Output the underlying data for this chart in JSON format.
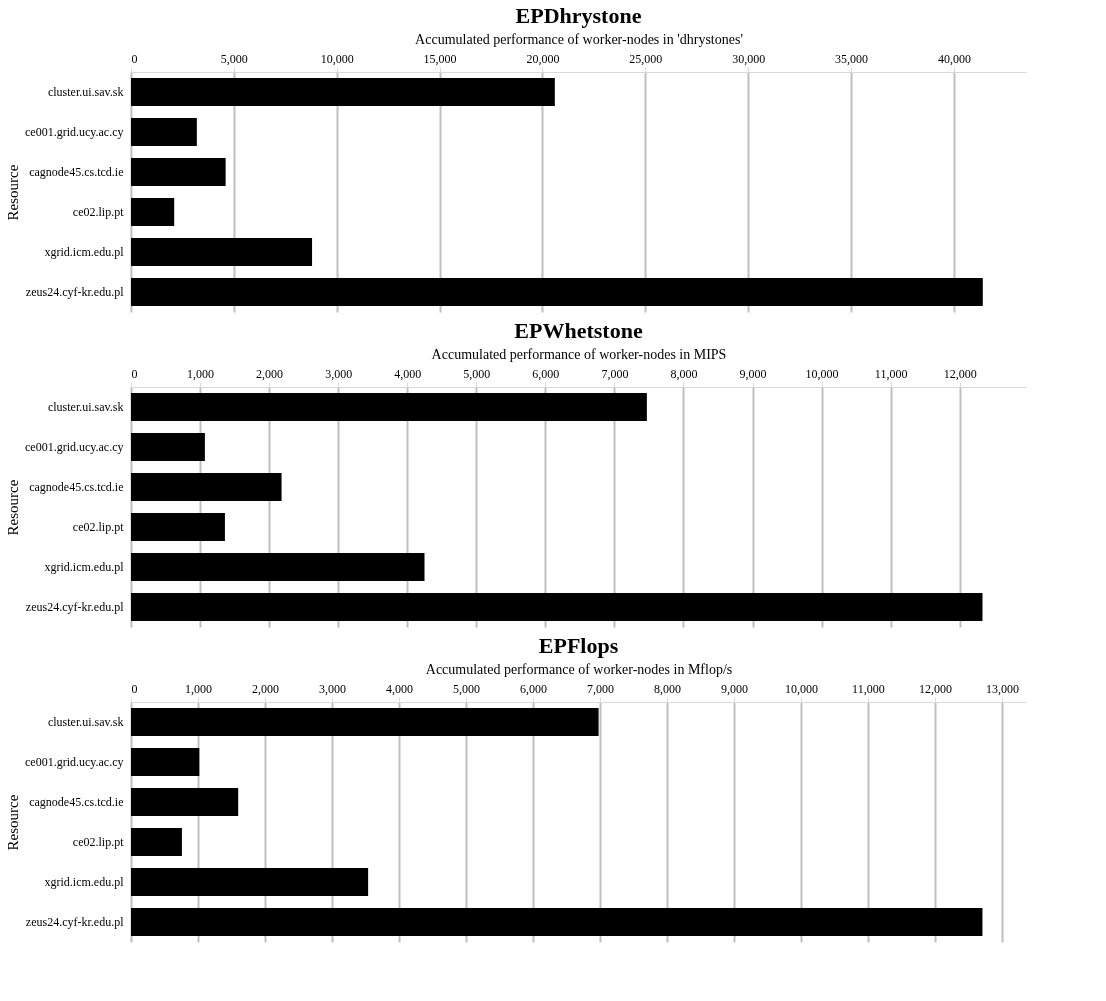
{
  "chart_data": [
    {
      "type": "bar",
      "orientation": "horizontal",
      "title": "EPDhrystone",
      "xlabel": "Accumulated performance of worker-nodes in 'dhrystones'",
      "ylabel": "Resource",
      "categories": [
        "cluster.ui.sav.sk",
        "ce001.grid.ucy.ac.cy",
        "cagnode45.cs.tcd.ie",
        "ce02.lip.pt",
        "xgrid.icm.edu.pl",
        "zeus24.cyf-kr.edu.pl"
      ],
      "values": [
        20600,
        3200,
        4600,
        2100,
        8800,
        41400
      ],
      "color": "#000000",
      "xlim": [
        0,
        43500
      ],
      "xticks": [
        0,
        {
          "value": 5000,
          "label": "5,000"
        },
        {
          "value": 10000,
          "label": "10,000"
        },
        {
          "value": 15000,
          "label": "15,000"
        },
        {
          "value": 20000,
          "label": "20,000"
        },
        {
          "value": 25000,
          "label": "25,000"
        },
        {
          "value": 30000,
          "label": "30,000"
        },
        {
          "value": 35000,
          "label": "35,000"
        },
        {
          "value": 40000,
          "label": "40,000"
        }
      ],
      "grid": "x"
    },
    {
      "type": "bar",
      "orientation": "horizontal",
      "title": "EPWhetstone",
      "xlabel": "Accumulated performance of worker-nodes in MIPS",
      "ylabel": "Resource",
      "categories": [
        "cluster.ui.sav.sk",
        "ce001.grid.ucy.ac.cy",
        "cagnode45.cs.tcd.ie",
        "ce02.lip.pt",
        "xgrid.icm.edu.pl",
        "zeus24.cyf-kr.edu.pl"
      ],
      "values": [
        7470,
        1070,
        2180,
        1360,
        4250,
        12330
      ],
      "color": "#000000",
      "xlim": [
        0,
        12960
      ],
      "xticks": [
        0,
        {
          "value": 1000,
          "label": "1,000"
        },
        {
          "value": 2000,
          "label": "2,000"
        },
        {
          "value": 3000,
          "label": "3,000"
        },
        {
          "value": 4000,
          "label": "4,000"
        },
        {
          "value": 5000,
          "label": "5,000"
        },
        {
          "value": 6000,
          "label": "6,000"
        },
        {
          "value": 7000,
          "label": "7,000"
        },
        {
          "value": 8000,
          "label": "8,000"
        },
        {
          "value": 9000,
          "label": "9,000"
        },
        {
          "value": 10000,
          "label": "10,000"
        },
        {
          "value": 11000,
          "label": "11,000"
        },
        {
          "value": 12000,
          "label": "12,000"
        }
      ],
      "grid": "x"
    },
    {
      "type": "bar",
      "orientation": "horizontal",
      "title": "EPFlops",
      "xlabel": "Accumulated performance of worker-nodes in Mflop/s",
      "ylabel": "Resource",
      "categories": [
        "cluster.ui.sav.sk",
        "ce001.grid.ucy.ac.cy",
        "cagnode45.cs.tcd.ie",
        "ce02.lip.pt",
        "xgrid.icm.edu.pl",
        "zeus24.cyf-kr.edu.pl"
      ],
      "values": [
        6980,
        1020,
        1600,
        760,
        3540,
        12710
      ],
      "color": "#000000",
      "xlim": [
        0,
        13360
      ],
      "xticks": [
        0,
        {
          "value": 1000,
          "label": "1,000"
        },
        {
          "value": 2000,
          "label": "2,000"
        },
        {
          "value": 3000,
          "label": "3,000"
        },
        {
          "value": 4000,
          "label": "4,000"
        },
        {
          "value": 5000,
          "label": "5,000"
        },
        {
          "value": 6000,
          "label": "6,000"
        },
        {
          "value": 7000,
          "label": "7,000"
        },
        {
          "value": 8000,
          "label": "8,000"
        },
        {
          "value": 9000,
          "label": "9,000"
        },
        {
          "value": 10000,
          "label": "10,000"
        },
        {
          "value": 11000,
          "label": "11,000"
        },
        {
          "value": 12000,
          "label": "12,000"
        },
        {
          "value": 13000,
          "label": "13,000"
        }
      ],
      "grid": "x"
    }
  ]
}
